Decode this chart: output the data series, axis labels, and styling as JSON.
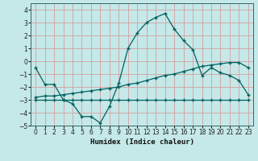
{
  "xlabel": "Humidex (Indice chaleur)",
  "bg_color": "#c5e8e8",
  "grid_color": "#d4a0a0",
  "line_color": "#006060",
  "xlim": [
    -0.5,
    23.5
  ],
  "ylim": [
    -5,
    4.5
  ],
  "xticks": [
    0,
    1,
    2,
    3,
    4,
    5,
    6,
    7,
    8,
    9,
    10,
    11,
    12,
    13,
    14,
    15,
    16,
    17,
    18,
    19,
    20,
    21,
    22,
    23
  ],
  "yticks": [
    -5,
    -4,
    -3,
    -2,
    -1,
    0,
    1,
    2,
    3,
    4
  ],
  "line1_x": [
    0,
    1,
    2,
    3,
    4,
    5,
    6,
    7,
    8,
    9,
    10,
    11,
    12,
    13,
    14,
    15,
    16,
    17,
    18,
    19,
    20,
    21,
    22,
    23
  ],
  "line1_y": [
    -0.5,
    -1.8,
    -1.8,
    -3.0,
    -3.3,
    -4.3,
    -4.3,
    -4.8,
    -3.5,
    -1.7,
    1.0,
    2.2,
    3.0,
    3.4,
    3.7,
    2.5,
    1.6,
    0.9,
    -1.1,
    -0.5,
    -0.9,
    -1.1,
    -1.5,
    -2.6
  ],
  "line2_x": [
    0,
    1,
    2,
    3,
    4,
    5,
    6,
    7,
    8,
    9,
    10,
    11,
    12,
    13,
    14,
    15,
    16,
    17,
    18,
    19,
    20,
    21,
    22,
    23
  ],
  "line2_y": [
    -3.0,
    -3.0,
    -3.0,
    -3.0,
    -3.0,
    -3.0,
    -3.0,
    -3.0,
    -3.0,
    -3.0,
    -3.0,
    -3.0,
    -3.0,
    -3.0,
    -3.0,
    -3.0,
    -3.0,
    -3.0,
    -3.0,
    -3.0,
    -3.0,
    -3.0,
    -3.0,
    -3.0
  ],
  "line3_x": [
    0,
    1,
    2,
    3,
    4,
    5,
    6,
    7,
    8,
    9,
    10,
    11,
    12,
    13,
    14,
    15,
    16,
    17,
    18,
    19,
    20,
    21,
    22,
    23
  ],
  "line3_y": [
    -2.8,
    -2.7,
    -2.7,
    -2.6,
    -2.5,
    -2.4,
    -2.3,
    -2.2,
    -2.1,
    -2.0,
    -1.8,
    -1.7,
    -1.5,
    -1.3,
    -1.1,
    -1.0,
    -0.8,
    -0.6,
    -0.4,
    -0.3,
    -0.2,
    -0.1,
    -0.1,
    -0.5
  ]
}
